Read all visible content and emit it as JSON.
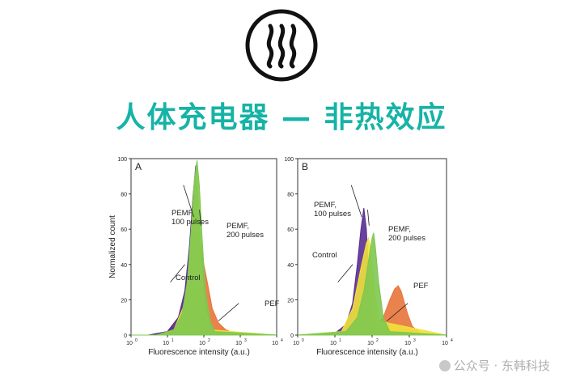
{
  "header": {
    "title": "人体充电器 — 非热效应",
    "logo_icon": "wave-lines-icon",
    "accent_color": "#16b3a6"
  },
  "watermark": {
    "text": "公众号 · 东韩科技",
    "icon": "wechat-icon"
  },
  "chart_data": [
    {
      "panel": "A",
      "type": "area",
      "xlabel": "Fluorescence intensity (a.u.)",
      "ylabel": "Normalized count",
      "xscale": "log",
      "xlim": [
        1,
        10000
      ],
      "ylim": [
        0,
        100
      ],
      "xticks": [
        "10",
        "10",
        "10",
        "10",
        "10"
      ],
      "xtick_exponents": [
        "0",
        "1",
        "2",
        "3",
        "4"
      ],
      "yticks": [
        "0",
        "20",
        "40",
        "60",
        "80",
        "100"
      ],
      "series": [
        {
          "name": "PEF",
          "color": "#e8743b",
          "x": [
            1,
            3,
            10,
            20,
            30,
            40,
            50,
            60,
            70,
            80,
            100,
            130,
            170,
            250,
            400,
            700,
            1000,
            10000
          ],
          "y": [
            0,
            0,
            2,
            10,
            22,
            40,
            55,
            62,
            58,
            52,
            40,
            28,
            15,
            7,
            3,
            1,
            0,
            0
          ]
        },
        {
          "name": "Control",
          "color": "#5a2d91",
          "x": [
            1,
            3,
            10,
            20,
            30,
            40,
            50,
            60,
            70,
            80,
            100,
            150,
            10000
          ],
          "y": [
            0,
            0,
            2,
            10,
            25,
            50,
            78,
            96,
            70,
            40,
            15,
            2,
            0
          ]
        },
        {
          "name": "PEMF, 100 pulses",
          "color": "#f0e23a",
          "x": [
            1,
            5,
            15,
            30,
            40,
            50,
            60,
            70,
            80,
            100,
            150,
            10000
          ],
          "y": [
            0,
            0,
            3,
            18,
            40,
            75,
            92,
            78,
            50,
            20,
            3,
            0
          ]
        },
        {
          "name": "PEMF, 200 pulses",
          "color": "#7ec850",
          "x": [
            1,
            5,
            15,
            25,
            35,
            45,
            55,
            65,
            75,
            90,
            110,
            150,
            200,
            10000
          ],
          "y": [
            0,
            0,
            3,
            12,
            30,
            60,
            88,
            99,
            85,
            55,
            25,
            8,
            2,
            0
          ]
        }
      ],
      "annotations": [
        "PEMF,\n100 pulses",
        "PEMF,\n200 pulses",
        "Control",
        "PEF"
      ]
    },
    {
      "panel": "B",
      "type": "area",
      "xlabel": "Fluorescence intensity (a.u.)",
      "ylabel": "",
      "xscale": "log",
      "xlim": [
        1,
        10000
      ],
      "ylim": [
        0,
        100
      ],
      "xticks": [
        "10",
        "10",
        "10",
        "10",
        "10"
      ],
      "xtick_exponents": [
        "0",
        "1",
        "2",
        "3",
        "4"
      ],
      "yticks": [
        "0",
        "20",
        "40",
        "60",
        "80",
        "100"
      ],
      "series": [
        {
          "name": "PEF",
          "color": "#e8743b",
          "x": [
            1,
            20,
            60,
            100,
            200,
            300,
            400,
            500,
            600,
            700,
            900,
            1200,
            2000,
            10000
          ],
          "y": [
            0,
            0,
            0,
            3,
            10,
            20,
            26,
            28,
            25,
            20,
            12,
            5,
            1,
            0
          ]
        },
        {
          "name": "Control",
          "color": "#5a2d91",
          "x": [
            1,
            10,
            20,
            30,
            40,
            50,
            60,
            70,
            80,
            100,
            150,
            10000
          ],
          "y": [
            0,
            1,
            6,
            18,
            40,
            60,
            72,
            60,
            35,
            12,
            2,
            0
          ]
        },
        {
          "name": "PEMF, 100 pulses",
          "color": "#f0e23a",
          "x": [
            1,
            15,
            30,
            50,
            70,
            80,
            90,
            110,
            150,
            10000
          ],
          "y": [
            0,
            2,
            15,
            38,
            52,
            55,
            50,
            30,
            8,
            0
          ]
        },
        {
          "name": "PEMF, 200 pulses",
          "color": "#7ec850",
          "x": [
            1,
            20,
            40,
            60,
            80,
            100,
            110,
            120,
            150,
            200,
            300,
            10000
          ],
          "y": [
            0,
            2,
            10,
            25,
            42,
            55,
            58,
            52,
            30,
            10,
            2,
            0
          ]
        }
      ],
      "annotations": [
        "PEMF,\n100 pulses",
        "PEMF,\n200 pulses",
        "Control",
        "PEF"
      ]
    }
  ]
}
